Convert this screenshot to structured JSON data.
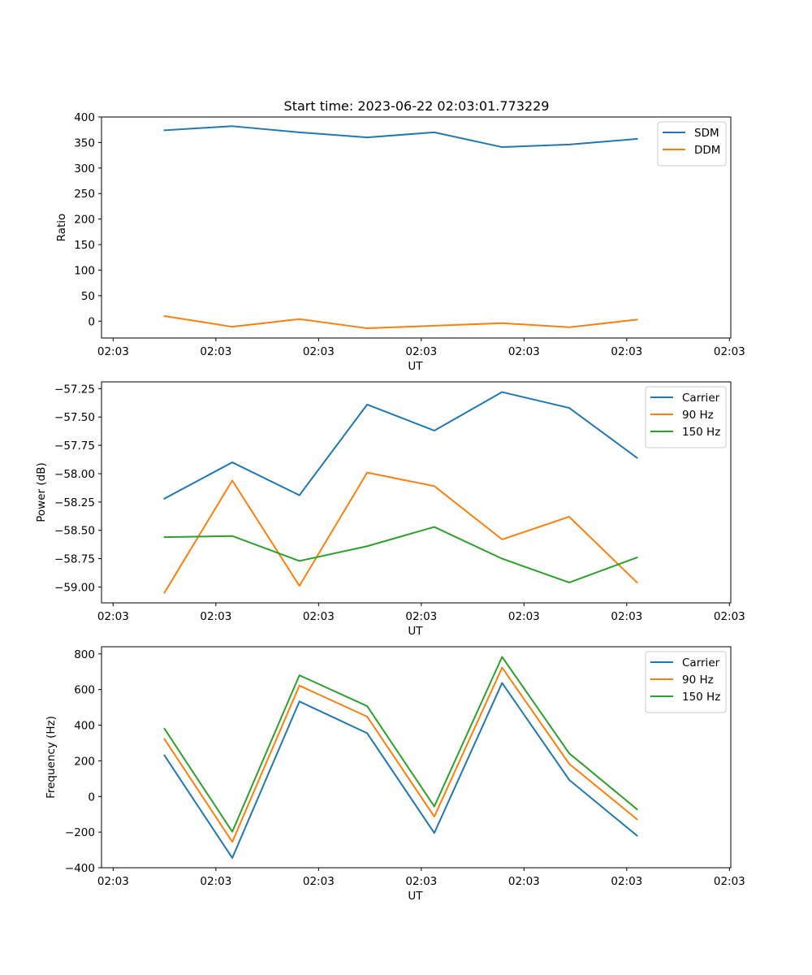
{
  "figure": {
    "title": "Start time: 2023-06-22 02:03:01.773229"
  },
  "chart_data": [
    {
      "type": "line",
      "id": "ratio",
      "title": "Start time: 2023-06-22 02:03:01.773229",
      "xlabel": "UT",
      "ylabel": "Ratio",
      "x_tick_labels": [
        "02:03",
        "02:03",
        "02:03",
        "02:03",
        "02:03",
        "02:03",
        "02:03"
      ],
      "x_tick_positions": [
        0,
        1.5,
        3,
        4.5,
        6,
        7.5,
        9
      ],
      "xlim": [
        -0.17,
        9.02
      ],
      "ylim": [
        -33,
        400
      ],
      "y_ticks": [
        0,
        50,
        100,
        150,
        200,
        250,
        300,
        350,
        400
      ],
      "y_tick_labels": [
        "0",
        "50",
        "100",
        "150",
        "200",
        "250",
        "300",
        "350",
        "400"
      ],
      "x": [
        0.75,
        1.74,
        2.72,
        3.71,
        4.69,
        5.68,
        6.66,
        7.65
      ],
      "series": [
        {
          "name": "SDM",
          "color": "#1f77b4",
          "values": [
            374,
            382,
            370,
            360,
            370,
            341,
            346,
            357
          ]
        },
        {
          "name": "DDM",
          "color": "#ff7f0e",
          "values": [
            10,
            -11,
            4,
            -14,
            -9,
            -4,
            -12,
            3
          ]
        }
      ],
      "legend": "upper right",
      "grid": false
    },
    {
      "type": "line",
      "id": "power",
      "xlabel": "UT",
      "ylabel": "Power (dB)",
      "x_tick_labels": [
        "02:03",
        "02:03",
        "02:03",
        "02:03",
        "02:03",
        "02:03",
        "02:03"
      ],
      "x_tick_positions": [
        0,
        1.5,
        3,
        4.5,
        6,
        7.5,
        9
      ],
      "xlim": [
        -0.17,
        9.02
      ],
      "ylim": [
        -59.14,
        -57.19
      ],
      "y_ticks": [
        -59.0,
        -58.75,
        -58.5,
        -58.25,
        -58.0,
        -57.75,
        -57.5,
        -57.25
      ],
      "y_tick_labels": [
        "−59.00",
        "−58.75",
        "−58.50",
        "−58.25",
        "−58.00",
        "−57.75",
        "−57.50",
        "−57.25"
      ],
      "x": [
        0.75,
        1.74,
        2.72,
        3.71,
        4.69,
        5.68,
        6.66,
        7.65
      ],
      "series": [
        {
          "name": "Carrier",
          "color": "#1f77b4",
          "values": [
            -58.22,
            -57.9,
            -58.19,
            -57.39,
            -57.62,
            -57.28,
            -57.42,
            -57.86
          ]
        },
        {
          "name": "90 Hz",
          "color": "#ff7f0e",
          "values": [
            -59.05,
            -58.06,
            -58.99,
            -57.99,
            -58.11,
            -58.58,
            -58.38,
            -58.96
          ]
        },
        {
          "name": "150 Hz",
          "color": "#2ca02c",
          "values": [
            -58.56,
            -58.55,
            -58.77,
            -58.64,
            -58.47,
            -58.75,
            -58.96,
            -58.74
          ]
        }
      ],
      "legend": "upper right",
      "grid": false
    },
    {
      "type": "line",
      "id": "frequency",
      "xlabel": "UT",
      "ylabel": "Frequency (Hz)",
      "x_tick_labels": [
        "02:03",
        "02:03",
        "02:03",
        "02:03",
        "02:03",
        "02:03",
        "02:03"
      ],
      "x_tick_positions": [
        0,
        1.5,
        3,
        4.5,
        6,
        7.5,
        9
      ],
      "xlim": [
        -0.17,
        9.02
      ],
      "ylim": [
        -400,
        840
      ],
      "y_ticks": [
        -400,
        -200,
        0,
        200,
        400,
        600,
        800
      ],
      "y_tick_labels": [
        "−400",
        "−200",
        "0",
        "200",
        "400",
        "600",
        "800"
      ],
      "x": [
        0.75,
        1.74,
        2.72,
        3.71,
        4.69,
        5.68,
        6.66,
        7.65
      ],
      "series": [
        {
          "name": "Carrier",
          "color": "#1f77b4",
          "values": [
            230,
            -345,
            533,
            355,
            -205,
            637,
            93,
            -220
          ]
        },
        {
          "name": "90 Hz",
          "color": "#ff7f0e",
          "values": [
            322,
            -255,
            622,
            448,
            -113,
            723,
            183,
            -128
          ]
        },
        {
          "name": "150 Hz",
          "color": "#2ca02c",
          "values": [
            380,
            -198,
            680,
            507,
            -56,
            783,
            242,
            -72
          ]
        }
      ],
      "legend": "upper right",
      "grid": false
    }
  ]
}
